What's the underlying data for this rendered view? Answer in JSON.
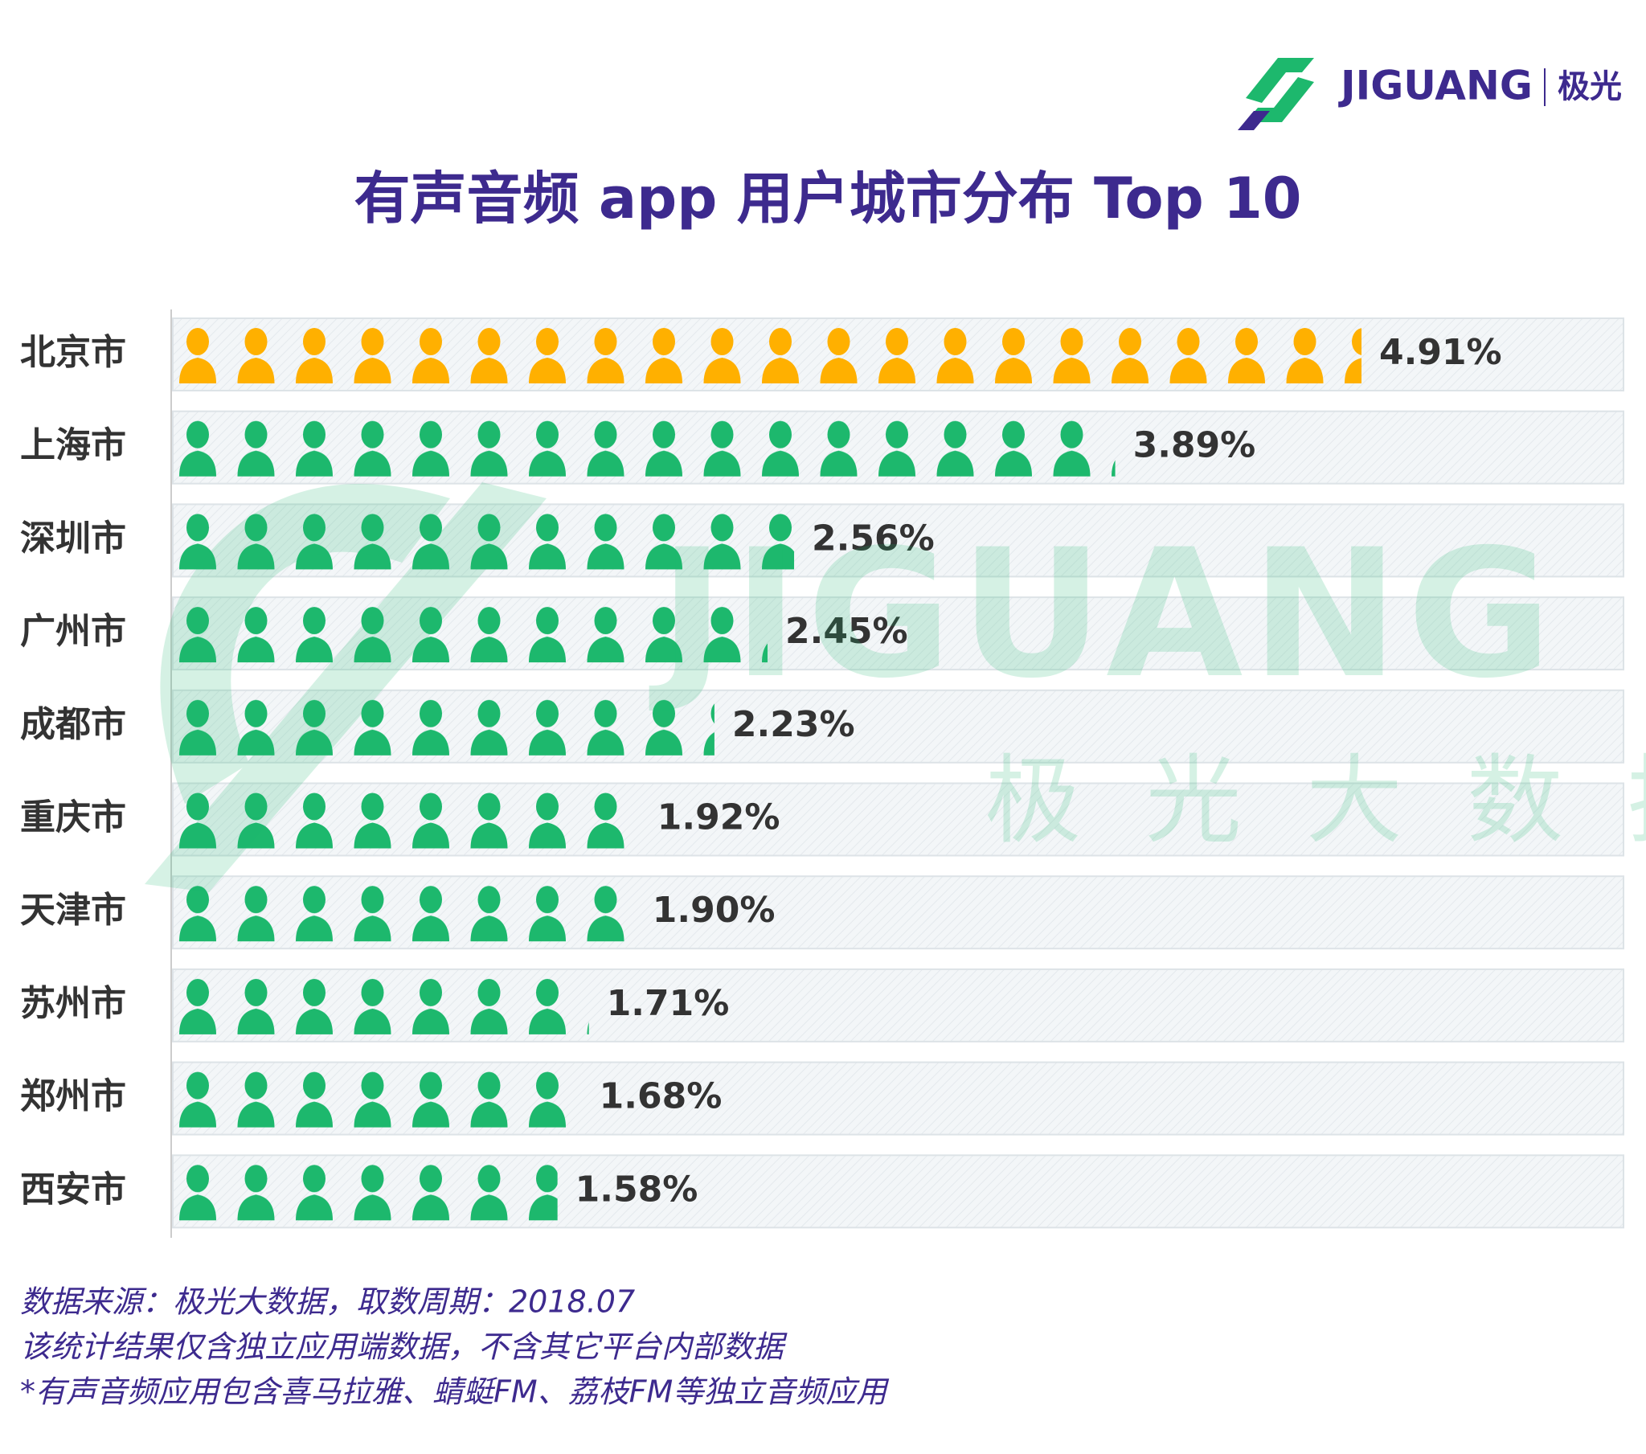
{
  "logo": {
    "brand": "JIGUANG",
    "cn": "极光"
  },
  "chart_data": {
    "type": "pictograph",
    "title": "有声音频 app 用户城市分布 Top 10",
    "categories": [
      "北京市",
      "上海市",
      "深圳市",
      "广州市",
      "成都市",
      "重庆市",
      "天津市",
      "苏州市",
      "郑州市",
      "西安市"
    ],
    "values": [
      4.91,
      3.89,
      2.56,
      2.45,
      2.23,
      1.92,
      1.9,
      1.71,
      1.68,
      1.58
    ],
    "value_labels": [
      "4.91%",
      "3.89%",
      "2.56%",
      "2.45%",
      "2.23%",
      "1.92%",
      "1.90%",
      "1.71%",
      "1.68%",
      "1.58%"
    ],
    "colors": [
      "#ffb000",
      "#1db86d",
      "#1db86d",
      "#1db86d",
      "#1db86d",
      "#1db86d",
      "#1db86d",
      "#1db86d",
      "#1db86d",
      "#1db86d"
    ]
  },
  "watermark": {
    "brand": "JIGUANG",
    "cn": "极光大数据"
  },
  "footer": {
    "notes": [
      "数据来源：极光大数据，取数周期：2018.07",
      "该统计结果仅含独立应用端数据，不含其它平台内部数据",
      " *有声音频应用包含喜马拉雅、蜻蜓FM、荔枝FM等独立音频应用"
    ]
  }
}
